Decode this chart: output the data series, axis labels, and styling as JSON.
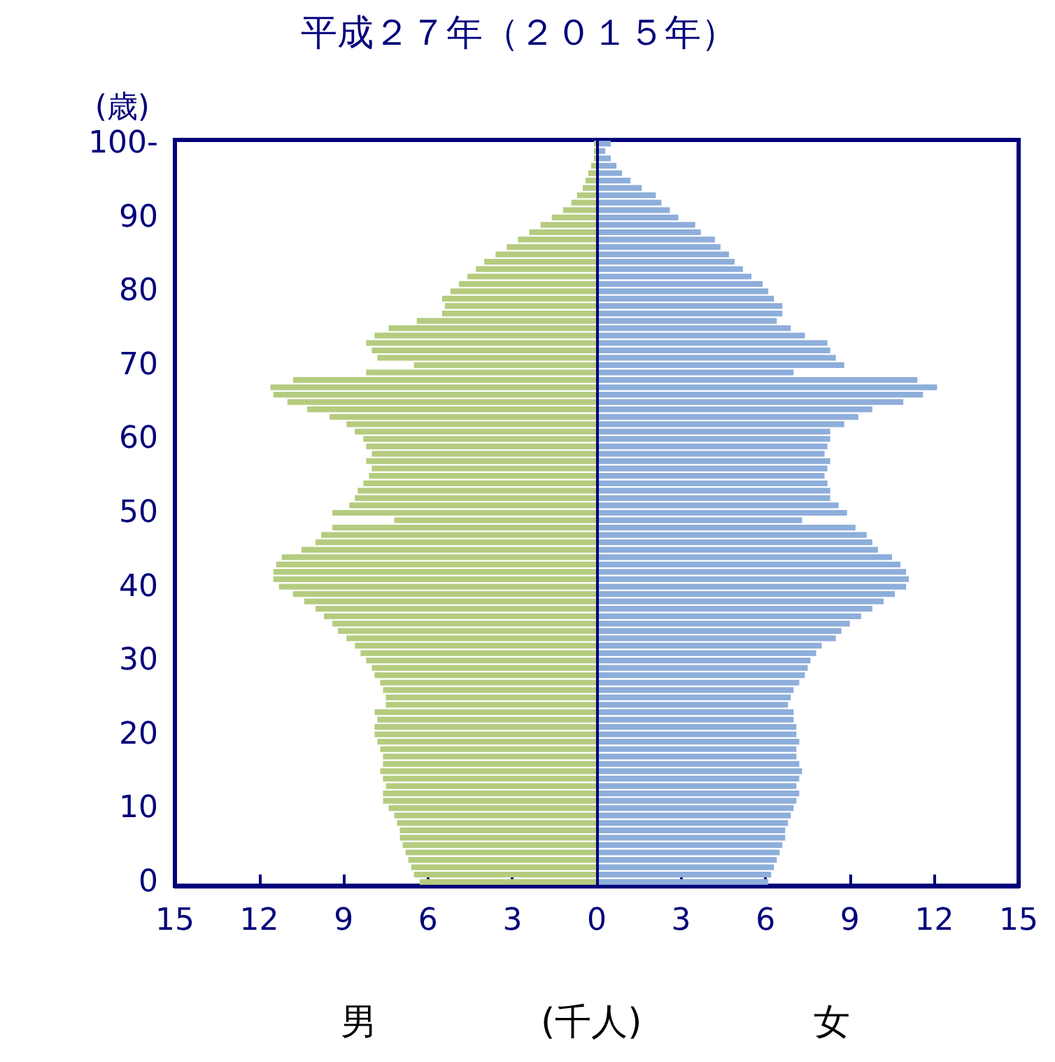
{
  "chart_data": {
    "type": "bar",
    "orientation": "horizontal",
    "title": "平成２７年（２０１５年）",
    "ylabel": "(歳)",
    "xlabel": "(千人)",
    "annotations": [
      "男",
      "女"
    ],
    "categories": [
      "100-",
      null,
      null,
      null,
      null,
      null,
      null,
      null,
      null,
      null,
      "90",
      null,
      null,
      null,
      null,
      null,
      null,
      null,
      null,
      null,
      "80",
      null,
      null,
      null,
      null,
      null,
      null,
      null,
      null,
      null,
      "70",
      null,
      null,
      null,
      null,
      null,
      null,
      null,
      null,
      null,
      "60",
      null,
      null,
      null,
      null,
      null,
      null,
      null,
      null,
      null,
      "50",
      null,
      null,
      null,
      null,
      null,
      null,
      null,
      null,
      null,
      "40",
      null,
      null,
      null,
      null,
      null,
      null,
      null,
      null,
      null,
      "30",
      null,
      null,
      null,
      null,
      null,
      null,
      null,
      null,
      null,
      "20",
      null,
      null,
      null,
      null,
      null,
      null,
      null,
      null,
      null,
      "10",
      null,
      null,
      null,
      null,
      null,
      null,
      null,
      null,
      null,
      "0"
    ],
    "series": [
      {
        "color": "#b5cc7f",
        "values": [
          -0.1,
          -0.1,
          -0.1,
          -0.2,
          -0.3,
          -0.4,
          -0.5,
          -0.7,
          -0.9,
          -1.2,
          -1.6,
          -2.0,
          -2.4,
          -2.8,
          -3.2,
          -3.6,
          -4.0,
          -4.3,
          -4.6,
          -4.9,
          -5.2,
          -5.5,
          -5.4,
          -5.5,
          -6.4,
          -7.4,
          -7.9,
          -8.2,
          -8.0,
          -7.8,
          -6.5,
          -8.2,
          -10.8,
          -11.6,
          -11.5,
          -11.0,
          -10.3,
          -9.5,
          -8.9,
          -8.6,
          -8.3,
          -8.2,
          -8.0,
          -8.2,
          -8.0,
          -8.1,
          -8.3,
          -8.5,
          -8.6,
          -8.8,
          -9.4,
          -7.2,
          -9.4,
          -9.8,
          -10.0,
          -10.5,
          -11.2,
          -11.4,
          -11.5,
          -11.5,
          -11.3,
          -10.8,
          -10.4,
          -10.0,
          -9.7,
          -9.4,
          -9.2,
          -8.9,
          -8.6,
          -8.4,
          -8.2,
          -8.0,
          -7.9,
          -7.7,
          -7.6,
          -7.5,
          -7.5,
          -7.9,
          -7.8,
          -7.9,
          -7.9,
          -7.8,
          -7.7,
          -7.6,
          -7.6,
          -7.7,
          -7.6,
          -7.5,
          -7.6,
          -7.6,
          -7.4,
          -7.2,
          -7.1,
          -7.0,
          -7.0,
          -6.9,
          -6.8,
          -6.7,
          -6.6,
          -6.5,
          -6.3
        ]
      },
      {
        "color": "#8eaedb",
        "values": [
          0.5,
          0.3,
          0.5,
          0.7,
          0.9,
          1.2,
          1.6,
          2.1,
          2.3,
          2.6,
          2.9,
          3.5,
          3.7,
          4.2,
          4.4,
          4.7,
          4.9,
          5.2,
          5.5,
          5.9,
          6.1,
          6.3,
          6.6,
          6.6,
          6.4,
          6.9,
          7.4,
          8.2,
          8.3,
          8.5,
          8.8,
          7.0,
          11.4,
          12.1,
          11.6,
          10.9,
          9.8,
          9.3,
          8.8,
          8.3,
          8.3,
          8.2,
          8.1,
          8.3,
          8.2,
          8.1,
          8.2,
          8.3,
          8.3,
          8.6,
          8.9,
          7.3,
          9.2,
          9.6,
          9.8,
          10.0,
          10.5,
          10.8,
          11.0,
          11.1,
          11.0,
          10.6,
          10.2,
          9.8,
          9.4,
          9.0,
          8.7,
          8.5,
          8.0,
          7.8,
          7.6,
          7.5,
          7.4,
          7.2,
          7.0,
          6.9,
          6.8,
          7.0,
          7.0,
          7.1,
          7.1,
          7.2,
          7.1,
          7.1,
          7.2,
          7.3,
          7.2,
          7.1,
          7.2,
          7.1,
          7.0,
          6.9,
          6.8,
          6.7,
          6.7,
          6.6,
          6.5,
          6.4,
          6.3,
          6.2,
          6.1
        ]
      }
    ],
    "xlim": [
      -15,
      15
    ],
    "xticks": [
      {
        "value": -15,
        "label": "15"
      },
      {
        "value": -12,
        "label": "12"
      },
      {
        "value": -9,
        "label": "9"
      },
      {
        "value": -6,
        "label": "6"
      },
      {
        "value": -3,
        "label": "3"
      },
      0,
      3,
      6,
      9,
      12,
      15
    ],
    "ref_lines": [
      {
        "axis": "x",
        "value": 0,
        "color": "#00007a"
      }
    ],
    "grid": false,
    "stacked": true
  }
}
